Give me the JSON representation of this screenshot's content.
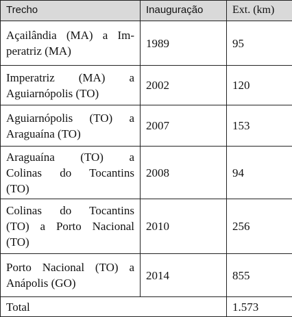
{
  "table": {
    "header": [
      "Trecho",
      "Inauguração",
      "Ext. (km)"
    ],
    "rows": [
      {
        "trecho": [
          "Açailândia (MA) a Im-",
          "peratriz (MA)"
        ],
        "inauguracao": 1989,
        "extensao": 95
      },
      {
        "trecho": [
          "Imperatriz (MA) a",
          "Aguiarnópolis (TO)"
        ],
        "inauguracao": 2002,
        "extensao": 120
      },
      {
        "trecho": [
          "Aguiarnópolis (TO) a",
          "Araguaína (TO)"
        ],
        "inauguracao": 2007,
        "extensao": 153
      },
      {
        "trecho": [
          "Araguaína (TO) a",
          "Colinas do Tocantins",
          "(TO)"
        ],
        "inauguracao": 2008,
        "extensao": 94
      },
      {
        "trecho": [
          "Colinas do Tocantins",
          "(TO) a Porto Nacional",
          "(TO)"
        ],
        "inauguracao": 2010,
        "extensao": 256
      },
      {
        "trecho": [
          "Porto Nacional (TO) a",
          "Anápolis (GO)"
        ],
        "inauguracao": 2014,
        "extensao": 855
      }
    ],
    "total": {
      "label": "Total",
      "value": "1.573"
    }
  }
}
